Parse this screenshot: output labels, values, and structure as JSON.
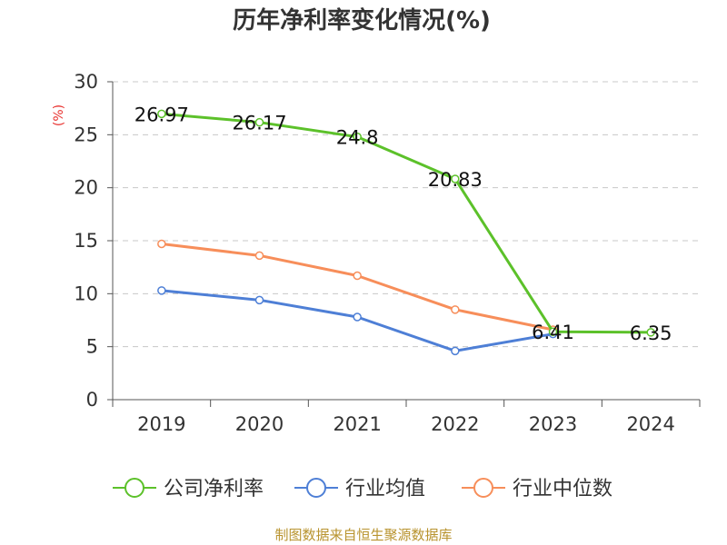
{
  "chart_data": {
    "type": "line",
    "title": "历年净利率变化情况(%)",
    "ylabel": "(%)",
    "xlabel": "",
    "categories": [
      "2019",
      "2020",
      "2021",
      "2022",
      "2023",
      "2024"
    ],
    "ylim": [
      0,
      30
    ],
    "yticks": [
      0,
      5,
      10,
      15,
      20,
      25,
      30
    ],
    "grid": true,
    "legend_position": "bottom",
    "series": [
      {
        "name": "公司净利率",
        "color": "#5cc12a",
        "values": [
          26.97,
          26.17,
          24.8,
          20.83,
          6.41,
          6.35
        ],
        "labels": [
          "26.97",
          "26.17",
          "24.8",
          "20.83",
          "6.41",
          "6.35"
        ]
      },
      {
        "name": "行业均值",
        "color": "#4e7fd6",
        "values": [
          10.3,
          9.4,
          7.8,
          4.6,
          6.2,
          null
        ]
      },
      {
        "name": "行业中位数",
        "color": "#f78e5a",
        "values": [
          14.7,
          13.6,
          11.7,
          8.5,
          6.6,
          null
        ]
      }
    ],
    "source": "制图数据来自恒生聚源数据库"
  }
}
